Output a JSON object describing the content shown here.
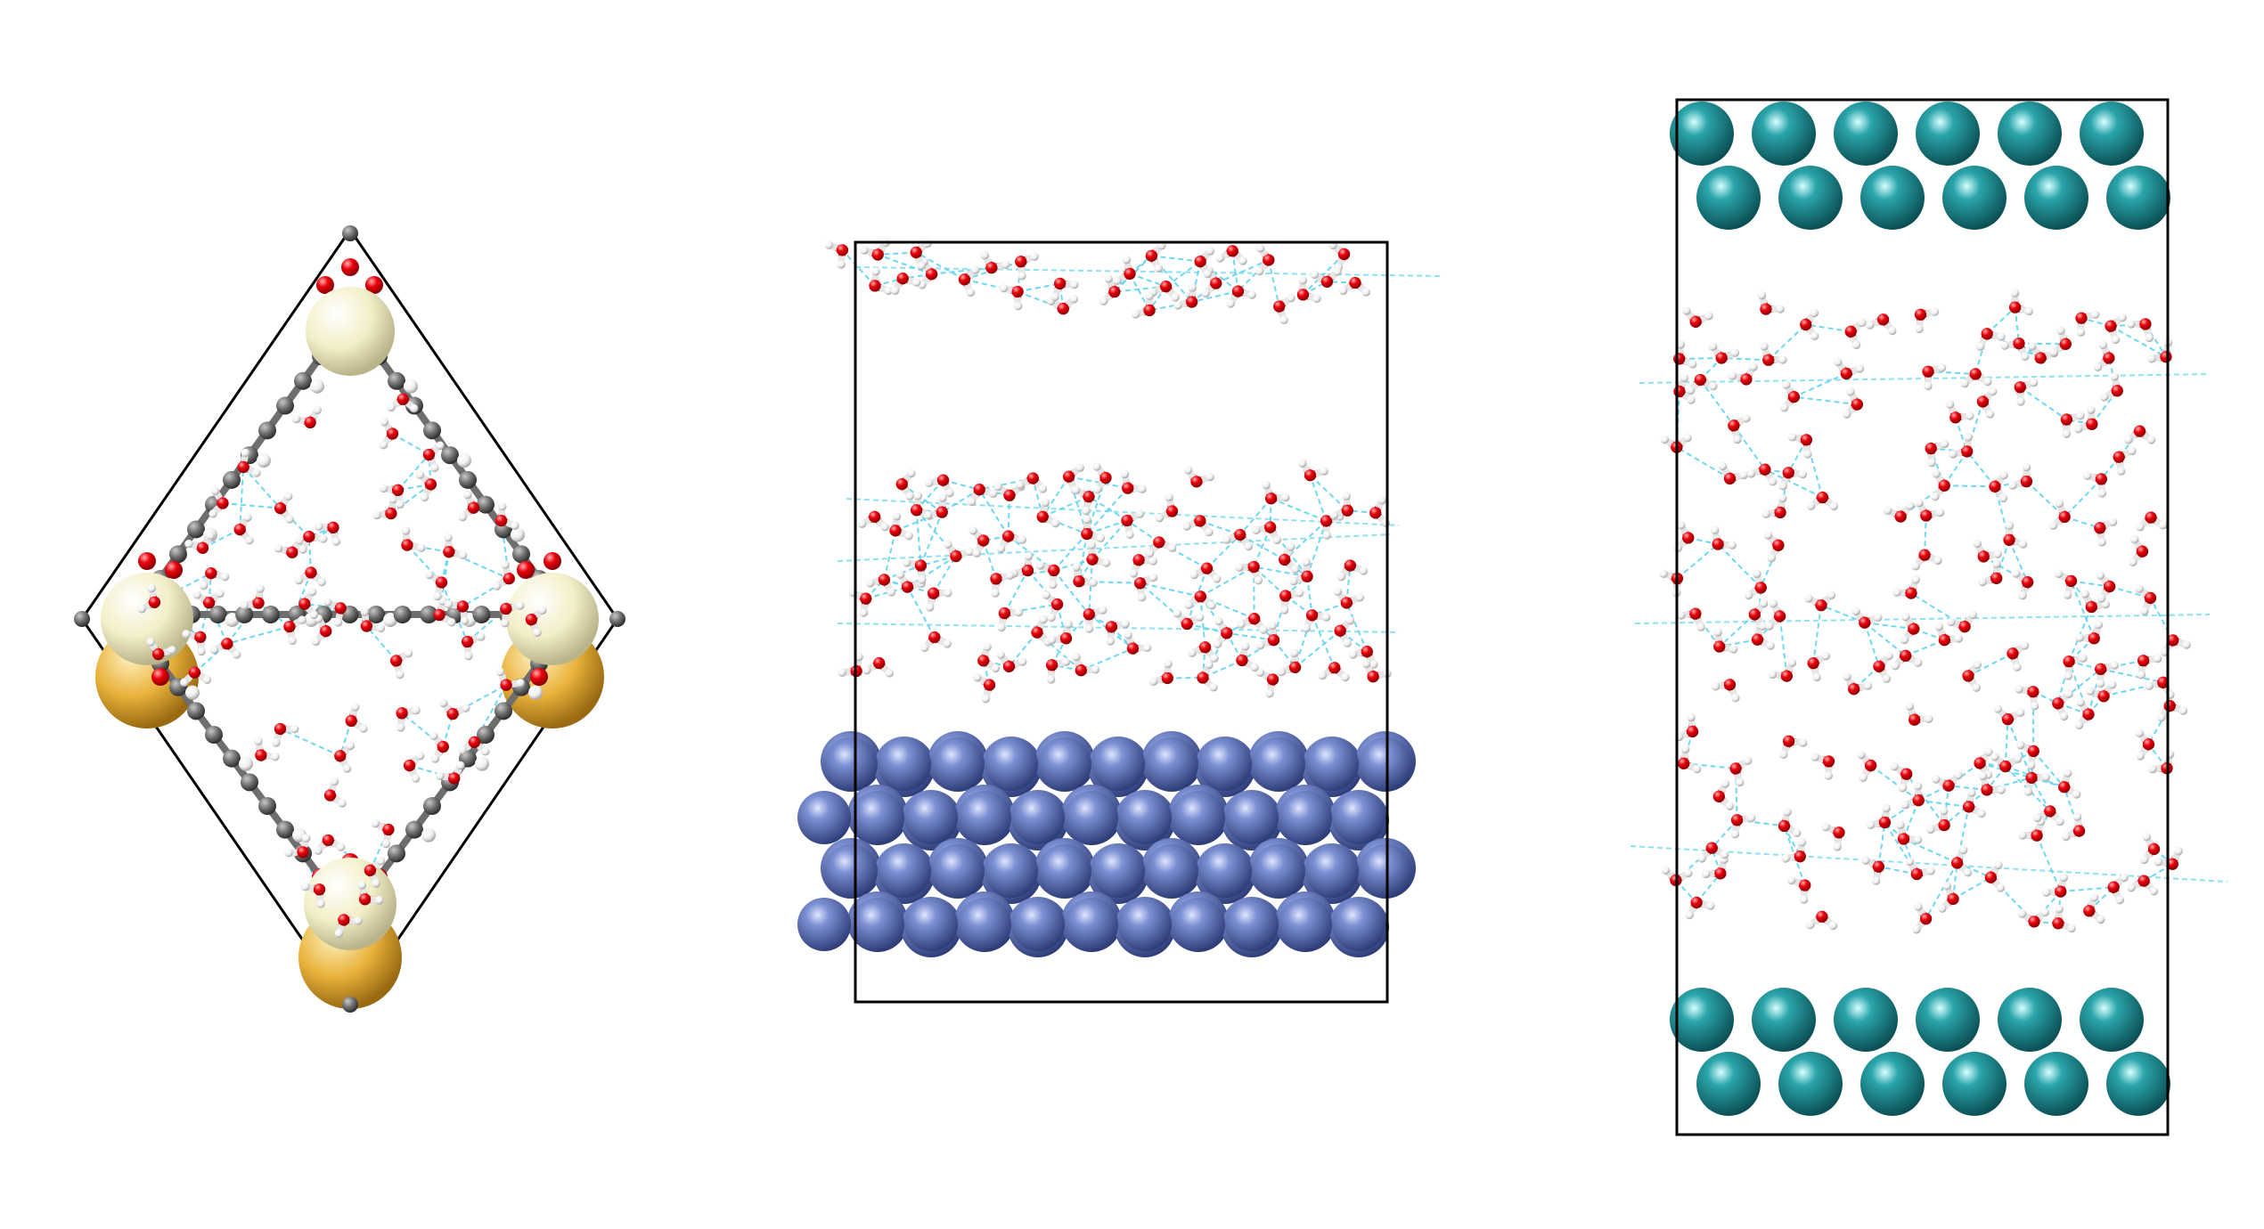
{
  "panels": [
    {
      "name": "mof-cage-with-water",
      "atoms": {
        "carbon": "#6e6e6e",
        "oxygen": "#e8000a",
        "hydrogen": "#f2f2f2",
        "metal_node_light": "#f3efc8",
        "metal_node_gold": "#e9b33c"
      },
      "hbond_color": "#5fd3f0",
      "cell_color": "#000000"
    },
    {
      "name": "metal-slab-with-water-layers",
      "atoms": {
        "slab_metal": "#5b6fb3",
        "oxygen": "#e8000a",
        "hydrogen": "#f2f2f2"
      },
      "hbond_color": "#5fd3f0",
      "cell_color": "#000000"
    },
    {
      "name": "water-confined-between-metal-layers",
      "atoms": {
        "slab_metal": "#1f8f95",
        "oxygen": "#e8000a",
        "hydrogen": "#f2f2f2"
      },
      "hbond_color": "#5fd3f0",
      "cell_color": "#000000"
    }
  ]
}
